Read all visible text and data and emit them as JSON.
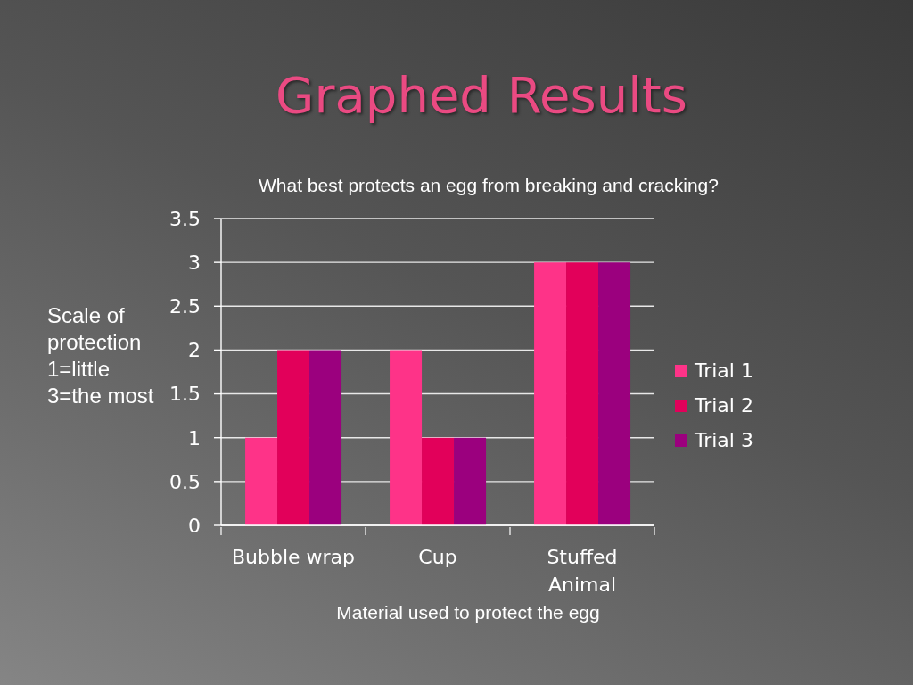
{
  "chart_data": {
    "type": "bar",
    "title": "Graphed Results",
    "subtitle": "What best protects an egg from breaking and cracking?",
    "xlabel": "Material used to protect the egg",
    "ylabel": "Scale of protection 1=little 3=the most",
    "categories": [
      "Bubble wrap",
      "Cup",
      "Stuffed Animal"
    ],
    "series": [
      {
        "name": "Trial 1",
        "color": "#fe3388",
        "values": [
          1,
          2,
          3
        ]
      },
      {
        "name": "Trial 2",
        "color": "#e2005a",
        "values": [
          2,
          1,
          3
        ]
      },
      {
        "name": "Trial 3",
        "color": "#9b007e",
        "values": [
          2,
          1,
          3
        ]
      }
    ],
    "ylim": [
      0,
      3.5
    ],
    "yticks": [
      0,
      0.5,
      1,
      1.5,
      2,
      2.5,
      3,
      3.5
    ],
    "grid": "y",
    "legend": "right"
  }
}
